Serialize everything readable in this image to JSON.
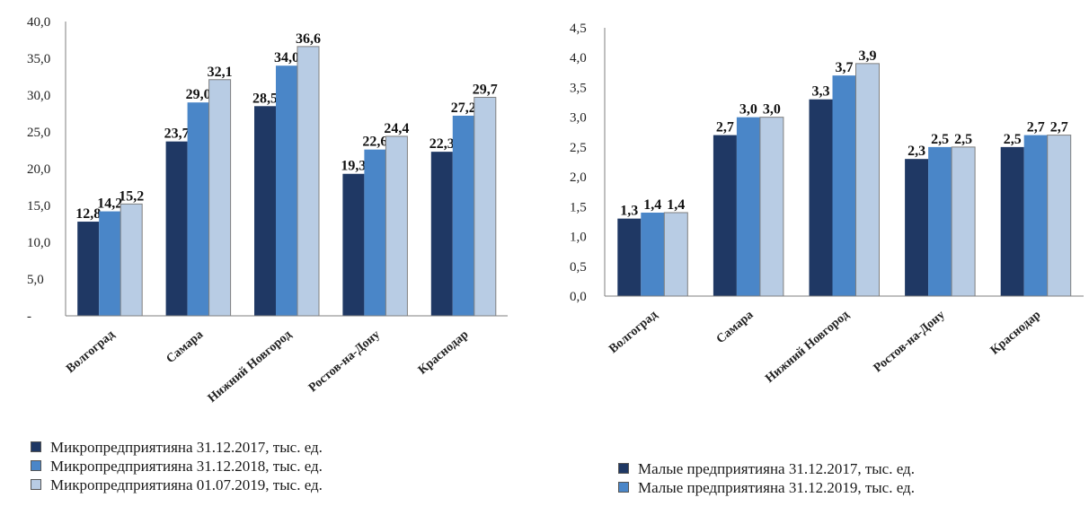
{
  "colors": {
    "series1": "#1f3864",
    "series2": "#4a86c8",
    "series3": "#b8cce4"
  },
  "chart_data": [
    {
      "type": "bar",
      "categories": [
        "Волгоград",
        "Самара",
        "Нижний Новгород",
        "Ростов-на-Дону",
        "Краснодар"
      ],
      "series": [
        {
          "name": "Микропредприятияна 31.12.2017, тыс. ед.",
          "values": [
            12.8,
            23.7,
            28.5,
            19.3,
            22.3
          ],
          "labels": [
            "12,8",
            "23,7",
            "28,5",
            "19,3",
            "22,3"
          ]
        },
        {
          "name": "Микропредприятияна 31.12.2018, тыс. ед.",
          "values": [
            14.2,
            29.0,
            34.0,
            22.6,
            27.2
          ],
          "labels": [
            "14,2",
            "29,0",
            "34,0",
            "22,6",
            "27,2"
          ]
        },
        {
          "name": "Микропредприятияна 01.07.2019, тыс. ед.",
          "values": [
            15.2,
            32.1,
            36.6,
            24.4,
            29.7
          ],
          "labels": [
            "15,2",
            "32,1",
            "36,6",
            "24,4",
            "29,7"
          ]
        }
      ],
      "ylim": [
        0,
        40
      ],
      "yticks": [
        "-",
        "5,0",
        "10,0",
        "15,0",
        "20,0",
        "25,0",
        "30,0",
        "35,0",
        "40,0"
      ],
      "legend_position": "bottom-left"
    },
    {
      "type": "bar",
      "categories": [
        "Волгоград",
        "Самара",
        "Нижний Новгород",
        "Ростов-на-Дону",
        "Краснодар"
      ],
      "series": [
        {
          "name": "Малые предприятияна 31.12.2017, тыс. ед.",
          "values": [
            1.3,
            2.7,
            3.3,
            2.3,
            2.5
          ],
          "labels": [
            "1,3",
            "2,7",
            "3,3",
            "2,3",
            "2,5"
          ]
        },
        {
          "name": "Малые предприятияна 31.12.2019, тыс. ед.",
          "values": [
            1.4,
            3.0,
            3.7,
            2.5,
            2.7
          ],
          "labels": [
            "1,4",
            "3,0",
            "3,7",
            "2,5",
            "2,7"
          ]
        },
        {
          "name": "",
          "values": [
            1.4,
            3.0,
            3.9,
            2.5,
            2.7
          ],
          "labels": [
            "1,4",
            "3,0",
            "3,9",
            "2,5",
            "2,7"
          ]
        }
      ],
      "ylim": [
        0,
        4.5
      ],
      "yticks": [
        "0,0",
        "0,5",
        "1,0",
        "1,5",
        "2,0",
        "2,5",
        "3,0",
        "3,5",
        "4,0",
        "4,5"
      ],
      "legend_position": "bottom"
    }
  ]
}
